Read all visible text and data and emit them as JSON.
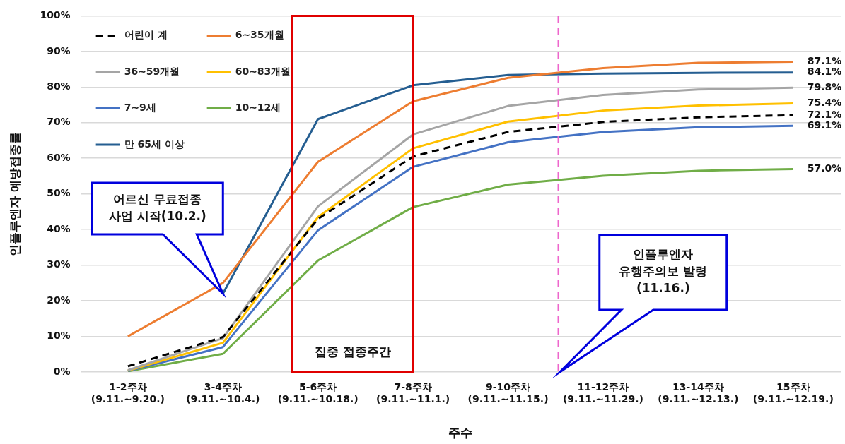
{
  "chart_data": {
    "type": "line",
    "xlabel": "주수",
    "ylabel": "인플루엔자 예방접종률",
    "categories": [
      "1-2주차\n(9.11.~9.20.)",
      "3-4주차\n(9.11.~10.4.)",
      "5-6주차\n(9.11.~10.18.)",
      "7-8주차\n(9.11.~11.1.)",
      "9-10주차\n(9.11.~11.15.)",
      "11-12주차\n(9.11.~11.29.)",
      "13-14주차\n(9.11.~12.13.)",
      "15주차\n(9.11.~12.19.)"
    ],
    "series": [
      {
        "name": "어린이 계",
        "color": "#000000",
        "line_style": "dashed",
        "values": [
          1.6,
          9.8,
          43,
          60.5,
          67.4,
          70.2,
          71.5,
          72.1
        ],
        "value_labels": [
          null,
          null,
          null,
          null,
          null,
          null,
          null,
          "72.1%"
        ]
      },
      {
        "name": "6~35개월",
        "color": "#ed7d31",
        "values": [
          10,
          25,
          59,
          76,
          82.6,
          85.3,
          86.8,
          87.1
        ],
        "value_labels": [
          null,
          null,
          null,
          null,
          null,
          null,
          null,
          "87.1%"
        ]
      },
      {
        "name": "36~59개월",
        "color": "#a5a5a5",
        "values": [
          0.5,
          9.5,
          46.5,
          66.7,
          74.7,
          77.8,
          79.3,
          79.8
        ],
        "value_labels": [
          null,
          null,
          null,
          null,
          null,
          null,
          null,
          "79.8%"
        ]
      },
      {
        "name": "60~83개월",
        "color": "#ffc000",
        "values": [
          0.4,
          8.2,
          43.5,
          62.8,
          70.3,
          73.4,
          74.8,
          75.4
        ],
        "value_labels": [
          null,
          null,
          null,
          null,
          null,
          null,
          null,
          "75.4%"
        ]
      },
      {
        "name": "7~9세",
        "color": "#4472c4",
        "values": [
          0.3,
          7,
          39.8,
          57.6,
          64.5,
          67.4,
          68.7,
          69.1
        ],
        "value_labels": [
          null,
          null,
          null,
          null,
          null,
          null,
          null,
          "69.1%"
        ]
      },
      {
        "name": "10~12세",
        "color": "#70ad47",
        "values": [
          0.2,
          5.1,
          31.3,
          46.3,
          52.6,
          55.1,
          56.5,
          57
        ],
        "value_labels": [
          null,
          null,
          null,
          null,
          null,
          null,
          null,
          "57.0%"
        ]
      },
      {
        "name": "만 65세 이상",
        "color": "#255e91",
        "values": [
          null,
          22,
          71,
          80.5,
          83.4,
          83.8,
          84,
          84.1
        ],
        "value_labels": [
          null,
          null,
          null,
          null,
          null,
          null,
          null,
          "84.1%"
        ]
      }
    ],
    "ylim": [
      0,
      100
    ],
    "yticks": [
      {
        "value": 0,
        "label": "0%"
      },
      {
        "value": 10,
        "label": "10%"
      },
      {
        "value": 20,
        "label": "20%"
      },
      {
        "value": 30,
        "label": "30%"
      },
      {
        "value": 40,
        "label": "40%"
      },
      {
        "value": 50,
        "label": "50%"
      },
      {
        "value": 60,
        "label": "60%"
      },
      {
        "value": 70,
        "label": "70%"
      },
      {
        "value": 80,
        "label": "80%"
      },
      {
        "value": 90,
        "label": "90%"
      },
      {
        "value": 100,
        "label": "100%"
      }
    ],
    "grid": "y",
    "legend": "top left",
    "ref_lines": [
      {
        "axis": "x",
        "value": "11-12주차\n(9.11.~11.29.)",
        "color": "#ee66cc",
        "line_style": "dashed"
      }
    ],
    "annotations": [
      "집중 접종주간",
      "어르신 무료접종\n사업 시작(10.2.)",
      "인플루엔자\n유행주의보 발령\n(11.16.)"
    ]
  }
}
